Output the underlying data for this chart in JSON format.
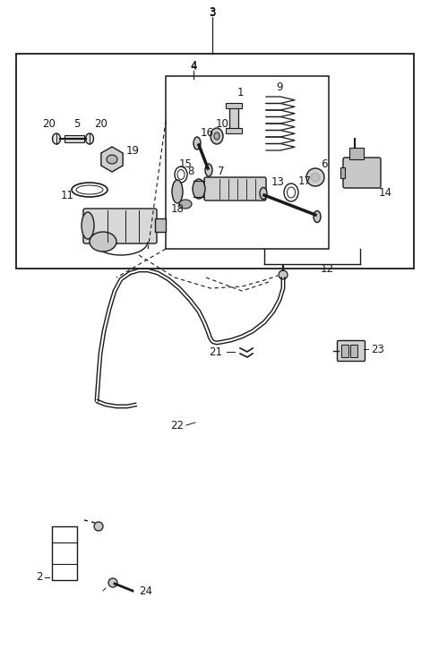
{
  "bg_color": "#ffffff",
  "line_color": "#1a1a1a",
  "fig_width": 4.8,
  "fig_height": 7.25,
  "dpi": 100,
  "font_size": 8.5
}
